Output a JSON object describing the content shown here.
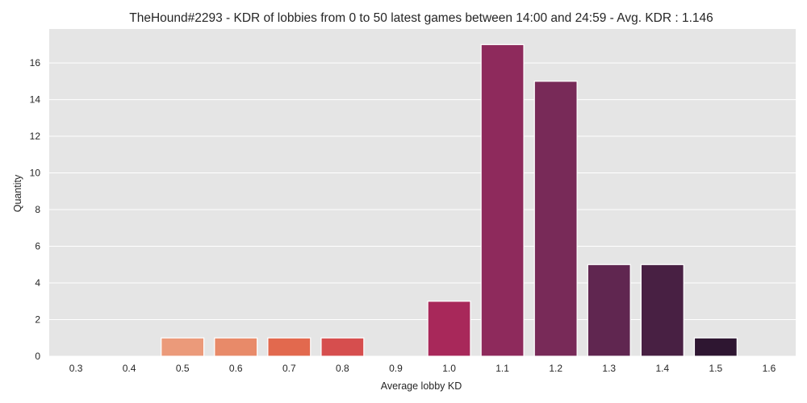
{
  "chart_data": {
    "type": "bar",
    "title": "TheHound#2293 - KDR of lobbies from 0 to 50 latest games between 14:00 and 24:59 - Avg. KDR : 1.146",
    "xlabel": "Average lobby KD",
    "ylabel": "Quantity",
    "categories": [
      "0.3",
      "0.4",
      "0.5",
      "0.6",
      "0.7",
      "0.8",
      "0.9",
      "1.0",
      "1.1",
      "1.2",
      "1.3",
      "1.4",
      "1.5",
      "1.6"
    ],
    "values": [
      0,
      0,
      1,
      1,
      1,
      1,
      0,
      3,
      17,
      15,
      5,
      5,
      1,
      0
    ],
    "colors": [
      "#f6c19f",
      "#f2a683",
      "#eb9a7a",
      "#e88a69",
      "#e2694e",
      "#d64e4e",
      "#bd3457",
      "#a8285a",
      "#8e2a5c",
      "#782a58",
      "#602650",
      "#482043",
      "#2e1631",
      "#1a0f22"
    ],
    "ylim": [
      0,
      17.85
    ],
    "yticks": [
      0,
      2,
      4,
      6,
      8,
      10,
      12,
      14,
      16
    ],
    "grid": true,
    "background": "#e5e5e5",
    "legend": "none"
  }
}
